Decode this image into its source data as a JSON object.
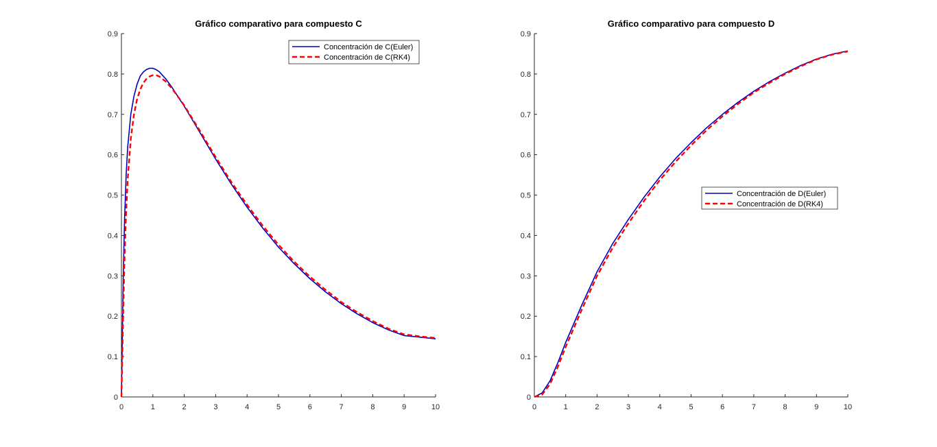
{
  "chart_data": [
    {
      "type": "line",
      "title": "Gráfico comparativo para compuesto C",
      "xlim": [
        0,
        10
      ],
      "ylim": [
        0,
        0.9
      ],
      "xticks": [
        "0",
        "1",
        "2",
        "3",
        "4",
        "5",
        "6",
        "7",
        "8",
        "9",
        "10"
      ],
      "yticks": [
        "0",
        "0.1",
        "0.2",
        "0.3",
        "0.4",
        "0.5",
        "0.6",
        "0.7",
        "0.8",
        "0.9"
      ],
      "grid": false,
      "legend_position": "top-right",
      "series": [
        {
          "name": "Concentración de C(Euler)",
          "color": "#0000bb",
          "style": "solid",
          "x": [
            0,
            0.03,
            0.06,
            0.1,
            0.15,
            0.2,
            0.3,
            0.4,
            0.5,
            0.6,
            0.7,
            0.8,
            0.9,
            1.0,
            1.1,
            1.2,
            1.4,
            1.6,
            1.8,
            2,
            2.5,
            3,
            3.5,
            4,
            4.5,
            5,
            5.5,
            6,
            6.5,
            7,
            7.5,
            8,
            8.5,
            9,
            9.5,
            10
          ],
          "y": [
            0,
            0.16,
            0.3,
            0.44,
            0.55,
            0.62,
            0.7,
            0.745,
            0.775,
            0.795,
            0.805,
            0.811,
            0.814,
            0.814,
            0.811,
            0.806,
            0.789,
            0.768,
            0.744,
            0.72,
            0.655,
            0.589,
            0.527,
            0.47,
            0.418,
            0.371,
            0.33,
            0.293,
            0.26,
            0.231,
            0.206,
            0.184,
            0.166,
            0.152,
            0.148,
            0.144
          ]
        },
        {
          "name": "Concentración de C(RK4)",
          "color": "#ff0000",
          "style": "dashed",
          "x": [
            0,
            0.03,
            0.06,
            0.1,
            0.15,
            0.2,
            0.3,
            0.4,
            0.5,
            0.6,
            0.7,
            0.8,
            0.9,
            1.0,
            1.1,
            1.2,
            1.4,
            1.6,
            1.8,
            2,
            2.5,
            3,
            3.5,
            4,
            4.5,
            5,
            5.5,
            6,
            6.5,
            7,
            7.5,
            8,
            8.5,
            9,
            9.5,
            10
          ],
          "y": [
            0,
            0.11,
            0.22,
            0.35,
            0.46,
            0.54,
            0.64,
            0.7,
            0.738,
            0.762,
            0.778,
            0.788,
            0.794,
            0.797,
            0.797,
            0.794,
            0.782,
            0.765,
            0.744,
            0.722,
            0.659,
            0.594,
            0.532,
            0.476,
            0.424,
            0.377,
            0.335,
            0.298,
            0.265,
            0.235,
            0.21,
            0.188,
            0.169,
            0.155,
            0.15,
            0.146
          ]
        }
      ]
    },
    {
      "type": "line",
      "title": "Gráfico comparativo para compuesto D",
      "xlim": [
        0,
        10
      ],
      "ylim": [
        0,
        0.9
      ],
      "xticks": [
        "0",
        "1",
        "2",
        "3",
        "4",
        "5",
        "6",
        "7",
        "8",
        "9",
        "10"
      ],
      "yticks": [
        "0",
        "0.1",
        "0.2",
        "0.3",
        "0.4",
        "0.5",
        "0.6",
        "0.7",
        "0.8",
        "0.9"
      ],
      "grid": false,
      "legend_position": "center-right",
      "series": [
        {
          "name": "Concentración de D(Euler)",
          "color": "#0000bb",
          "style": "solid",
          "x": [
            0,
            0.25,
            0.5,
            0.75,
            1,
            1.5,
            2,
            2.5,
            3,
            3.5,
            4,
            4.5,
            5,
            5.5,
            6,
            6.5,
            7,
            7.5,
            8,
            8.5,
            9,
            9.5,
            10
          ],
          "y": [
            0,
            0.01,
            0.04,
            0.085,
            0.135,
            0.225,
            0.31,
            0.38,
            0.44,
            0.495,
            0.545,
            0.59,
            0.63,
            0.667,
            0.7,
            0.73,
            0.757,
            0.781,
            0.802,
            0.821,
            0.837,
            0.849,
            0.857
          ]
        },
        {
          "name": "Concentración de D(RK4)",
          "color": "#ff0000",
          "style": "dashed",
          "x": [
            0,
            0.25,
            0.5,
            0.75,
            1,
            1.5,
            2,
            2.5,
            3,
            3.5,
            4,
            4.5,
            5,
            5.5,
            6,
            6.5,
            7,
            7.5,
            8,
            8.5,
            9,
            9.5,
            10
          ],
          "y": [
            0,
            0.006,
            0.032,
            0.075,
            0.124,
            0.214,
            0.3,
            0.37,
            0.43,
            0.486,
            0.537,
            0.582,
            0.623,
            0.661,
            0.695,
            0.726,
            0.754,
            0.778,
            0.8,
            0.819,
            0.836,
            0.848,
            0.856
          ]
        }
      ]
    }
  ]
}
